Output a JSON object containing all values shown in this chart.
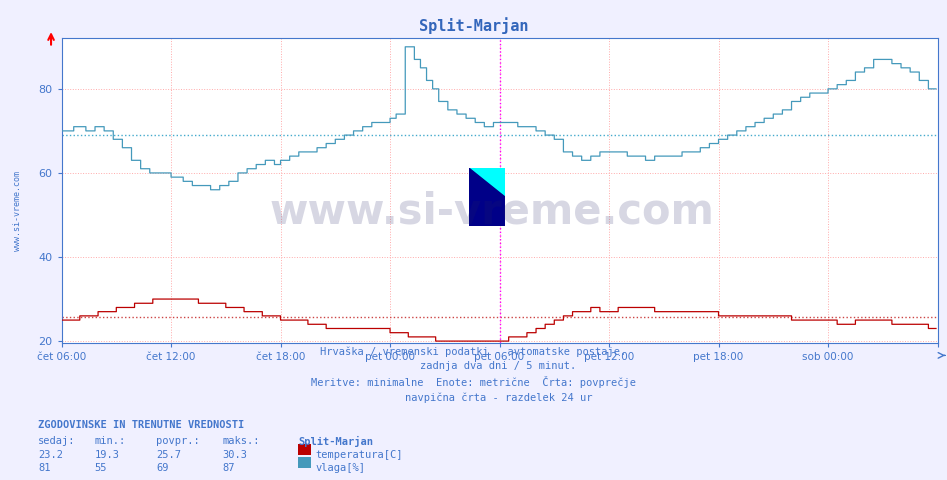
{
  "title": "Split-Marjan",
  "background_color": "#f0f0ff",
  "plot_bg_color": "#ffffff",
  "ylim": [
    19.5,
    92
  ],
  "yticks": [
    20,
    40,
    60,
    80
  ],
  "ylabel_color": "#4477cc",
  "grid_color_v": "#ffaaaa",
  "grid_color_h": "#ffaaaa",
  "avg_temp_line": 25.7,
  "avg_hum_line": 69,
  "avg_temp_line_color": "#cc4444",
  "avg_hum_line_color": "#44aacc",
  "temp_color": "#bb0000",
  "hum_color": "#4499bb",
  "axis_color": "#4477cc",
  "title_color": "#3366bb",
  "watermark_text": "www.si-vreme.com",
  "watermark_color": "#222266",
  "watermark_alpha": 0.18,
  "subtitle_text": "Hrvaška / vremenski podatki - avtomatske postaje.\n        zadnja dva dni / 5 minut.\nMeritve: minimalne  Enote: metrične  Črta: povprečje\n        navpična črta - razdelek 24 ur",
  "subtitle_color": "#4477cc",
  "legend_title": "Split-Marjan",
  "stats_header": "ZGODOVINSKE IN TRENUTNE VREDNOSTI",
  "stats_labels": [
    "sedaj:",
    "min.:",
    "povpr.:",
    "maks.:"
  ],
  "stats_temp": [
    23.2,
    19.3,
    25.7,
    30.3
  ],
  "stats_hum": [
    81,
    55,
    69,
    87
  ],
  "temp_label": "temperatura[C]",
  "hum_label": "vlaga[%]",
  "n_points": 576,
  "xtick_labels": [
    "čet 06:00",
    "čet 12:00",
    "čet 18:00",
    "pet 00:00",
    "pet 06:00",
    "pet 12:00",
    "pet 18:00",
    "sob 00:00",
    ""
  ],
  "xtick_positions": [
    0,
    72,
    144,
    216,
    288,
    360,
    432,
    504,
    576
  ],
  "vline_positions": [
    0,
    72,
    144,
    216,
    288,
    360,
    432,
    504,
    576
  ],
  "magenta_vline_pos": 288
}
